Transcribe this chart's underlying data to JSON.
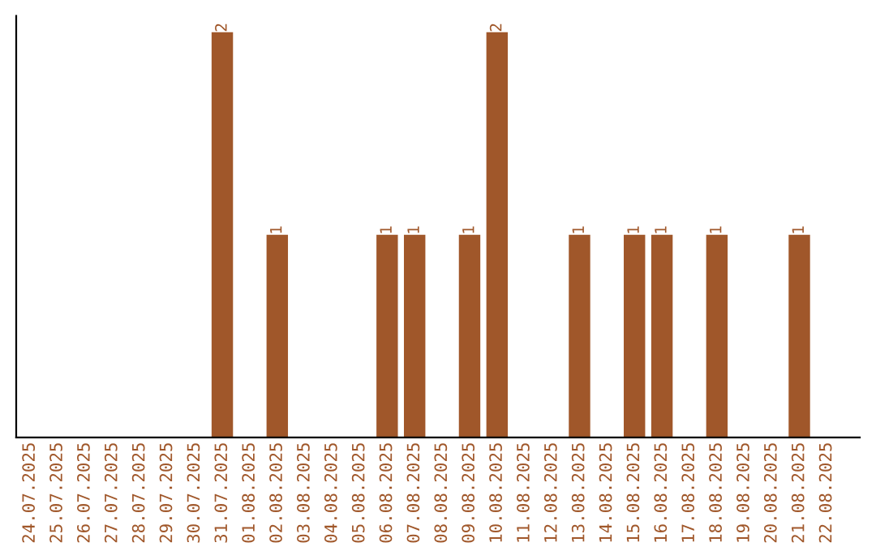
{
  "chart_data": {
    "type": "bar",
    "categories": [
      "24.07.2025",
      "25.07.2025",
      "26.07.2025",
      "27.07.2025",
      "28.07.2025",
      "29.07.2025",
      "30.07.2025",
      "31.07.2025",
      "01.08.2025",
      "02.08.2025",
      "03.08.2025",
      "04.08.2025",
      "05.08.2025",
      "06.08.2025",
      "07.08.2025",
      "08.08.2025",
      "09.08.2025",
      "10.08.2025",
      "11.08.2025",
      "12.08.2025",
      "13.08.2025",
      "14.08.2025",
      "15.08.2025",
      "16.08.2025",
      "17.08.2025",
      "18.08.2025",
      "19.08.2025",
      "20.08.2025",
      "21.08.2025",
      "22.08.2025"
    ],
    "values": [
      0,
      0,
      0,
      0,
      0,
      0,
      0,
      2,
      0,
      1,
      0,
      0,
      0,
      1,
      1,
      0,
      1,
      2,
      0,
      0,
      1,
      0,
      1,
      1,
      0,
      1,
      0,
      0,
      1,
      0
    ],
    "value_labels": [
      null,
      null,
      null,
      null,
      null,
      null,
      null,
      "2",
      null,
      "1",
      null,
      null,
      null,
      "1",
      "1",
      null,
      "1",
      "2",
      null,
      null,
      "1",
      null,
      "1",
      "1",
      null,
      "1",
      null,
      null,
      "1",
      null
    ],
    "color": "#a0572a",
    "grid": false,
    "legend": false
  }
}
